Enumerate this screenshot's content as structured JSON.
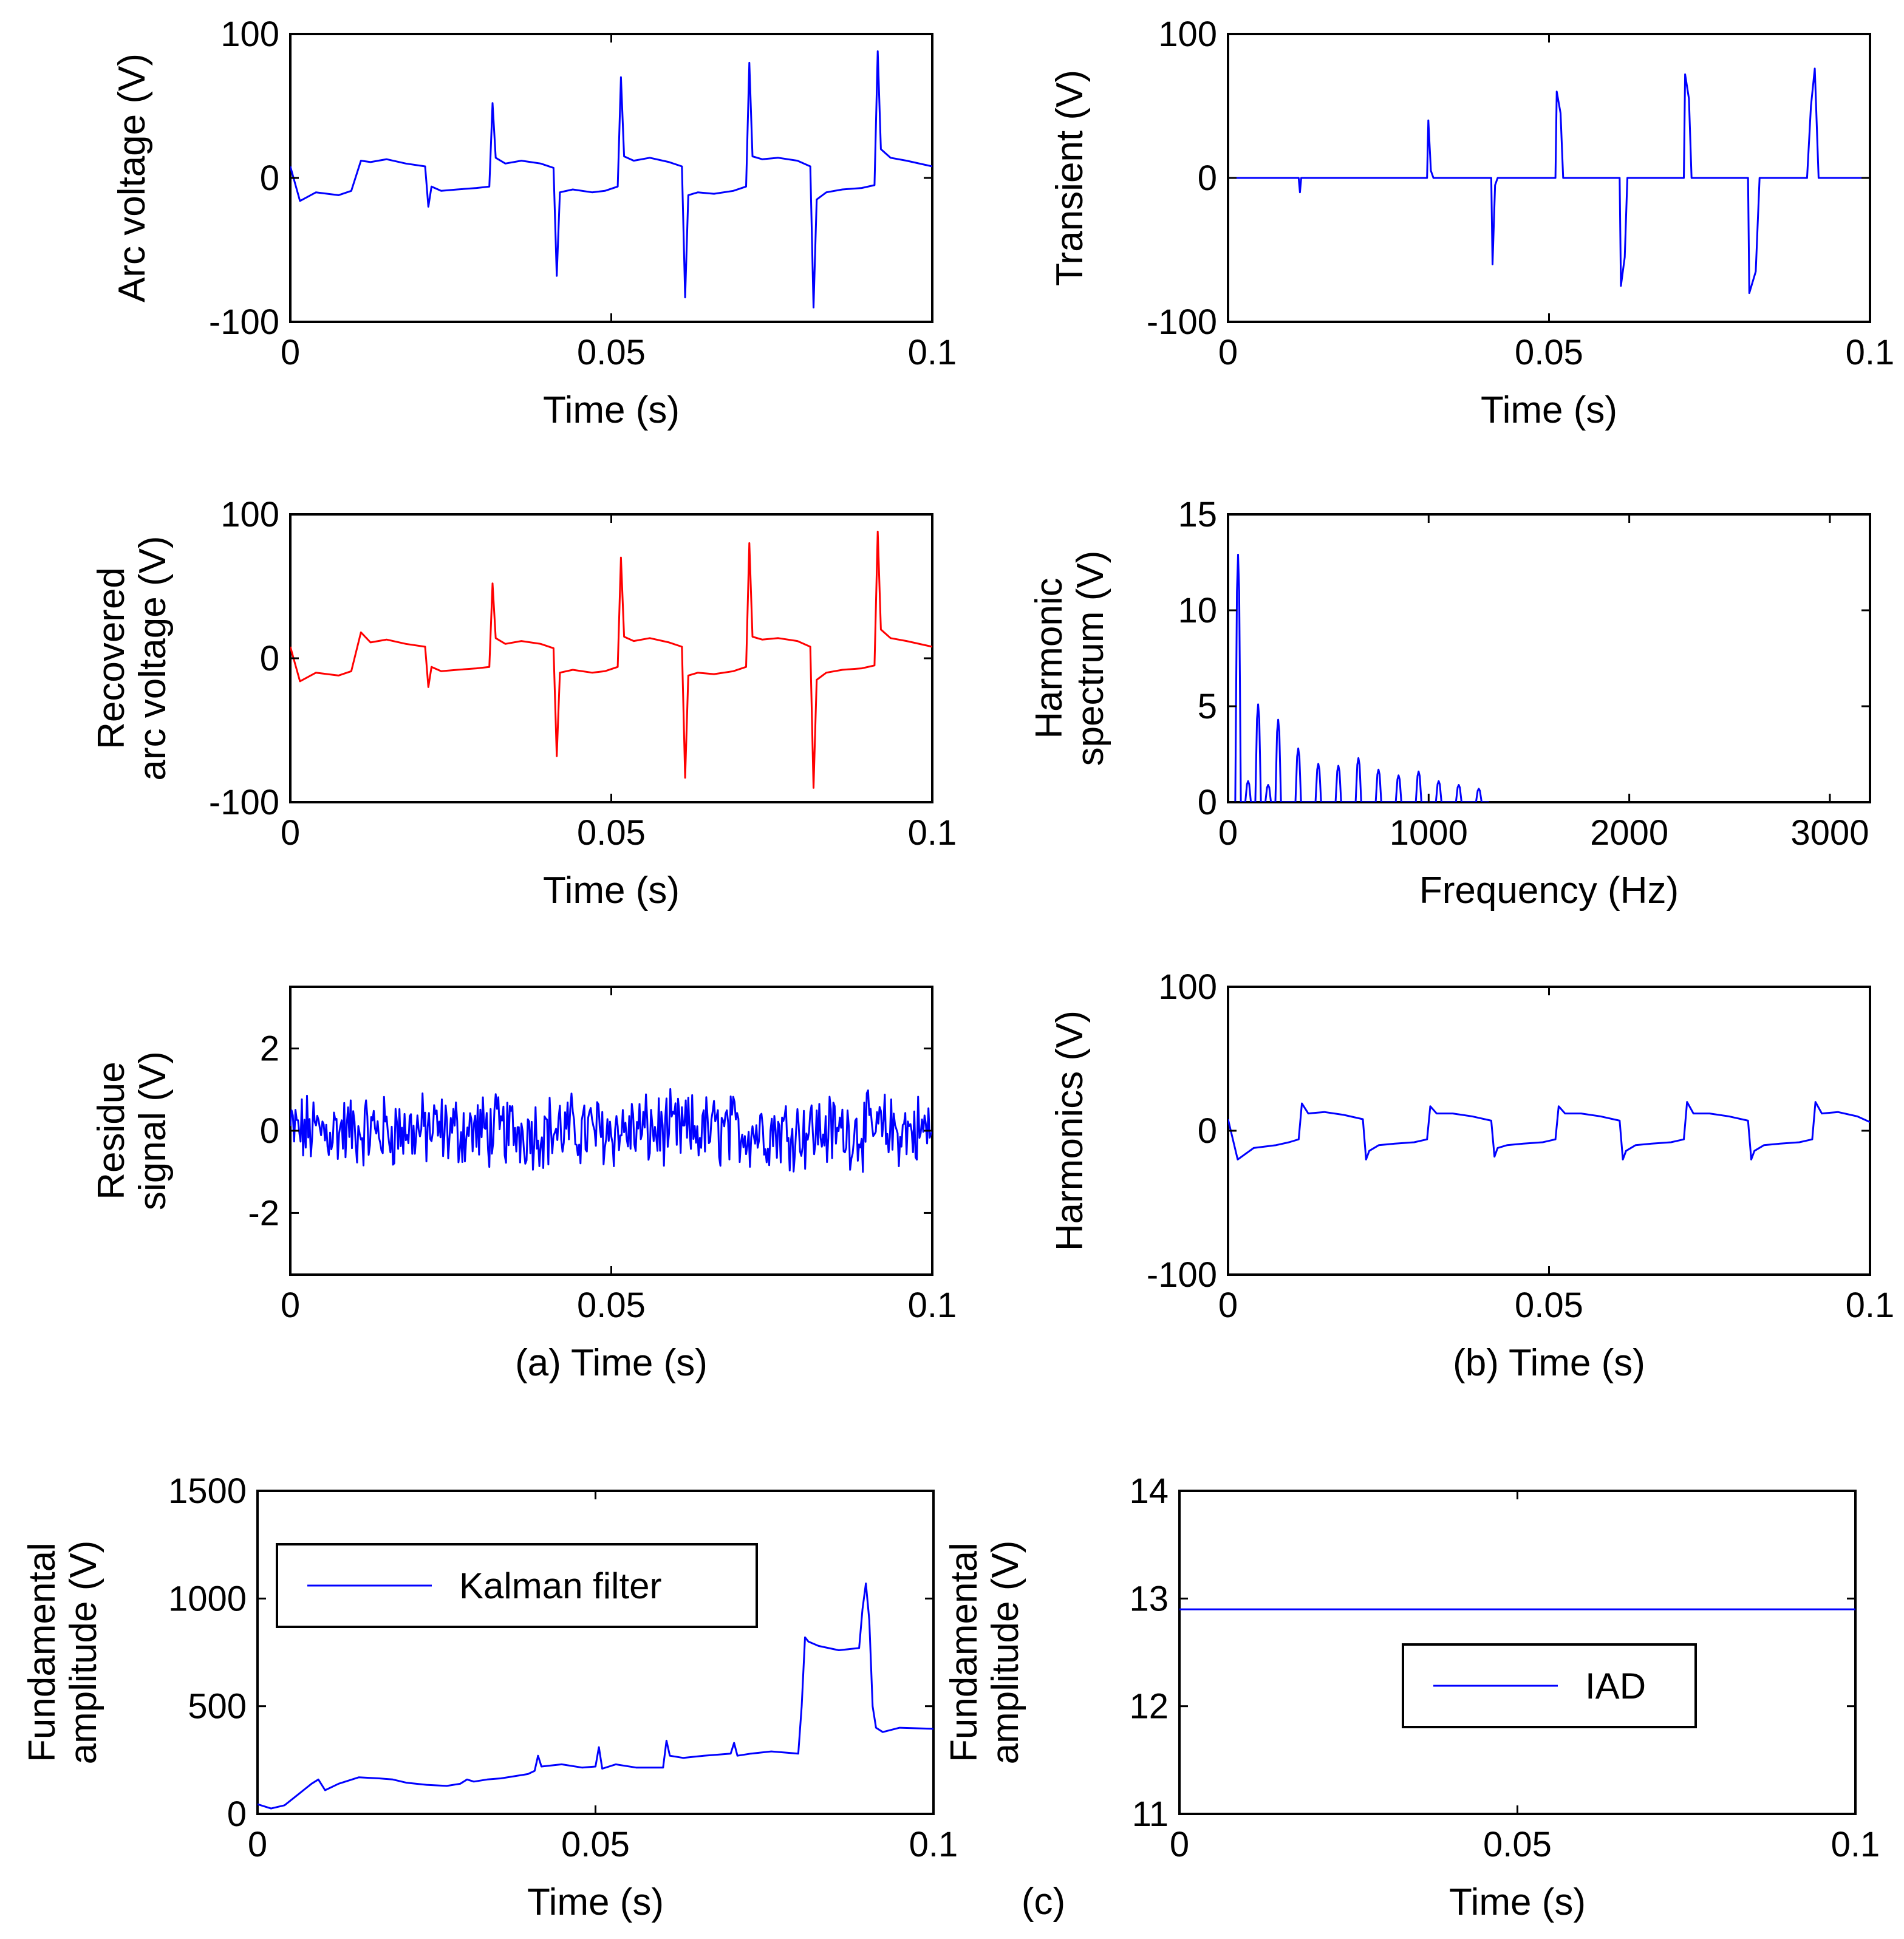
{
  "colors": {
    "blue": "#0000ff",
    "red": "#ff0000",
    "axis": "#000000",
    "background": "#ffffff"
  },
  "chart_data": [
    {
      "id": "arc-voltage",
      "type": "line",
      "xlabel": "Time (s)",
      "ylabel": [
        "Arc voltage (V)"
      ],
      "xlim": [
        0,
        0.1
      ],
      "ylim": [
        -100,
        100
      ],
      "xticks": [
        0,
        0.05,
        0.1
      ],
      "xtick_labels": [
        "0",
        "0.05",
        "0.1"
      ],
      "yticks": [
        -100,
        0,
        100
      ],
      "ytick_labels": [
        "-100",
        "0",
        "100"
      ],
      "series": [
        {
          "name": "Arc voltage",
          "color": "#0000ff",
          "x": [
            0,
            0.0015,
            0.004,
            0.0075,
            0.0095,
            0.011,
            0.0125,
            0.015,
            0.018,
            0.021,
            0.0215,
            0.022,
            0.0235,
            0.026,
            0.029,
            0.031,
            0.0315,
            0.032,
            0.0335,
            0.036,
            0.039,
            0.041,
            0.0415,
            0.042,
            0.044,
            0.047,
            0.049,
            0.051,
            0.0515,
            0.052,
            0.0535,
            0.056,
            0.059,
            0.061,
            0.0615,
            0.062,
            0.0635,
            0.066,
            0.069,
            0.071,
            0.0715,
            0.072,
            0.0735,
            0.076,
            0.079,
            0.081,
            0.0815,
            0.082,
            0.0835,
            0.086,
            0.089,
            0.091,
            0.0915,
            0.092,
            0.0935,
            0.096,
            0.1
          ],
          "y": [
            8,
            -16,
            -10,
            -12,
            -9,
            12,
            11,
            13,
            10,
            8,
            -20,
            -6,
            -9,
            -8,
            -7,
            -6,
            52,
            14,
            10,
            12,
            10,
            7,
            -68,
            -10,
            -8,
            -10,
            -9,
            -6,
            70,
            15,
            12,
            14,
            11,
            8,
            -83,
            -12,
            -10,
            -11,
            -9,
            -6,
            80,
            15,
            13,
            14,
            12,
            8,
            -90,
            -15,
            -10,
            -8,
            -7,
            -5,
            88,
            20,
            14,
            12,
            8
          ]
        }
      ]
    },
    {
      "id": "transient",
      "type": "line",
      "xlabel": "Time (s)",
      "ylabel": [
        "Transient (V)"
      ],
      "xlim": [
        0,
        0.1
      ],
      "ylim": [
        -100,
        100
      ],
      "xticks": [
        0,
        0.05,
        0.1
      ],
      "xtick_labels": [
        "0",
        "0.05",
        "0.1"
      ],
      "yticks": [
        -100,
        0,
        100
      ],
      "ytick_labels": [
        "-100",
        "0",
        "100"
      ],
      "series": [
        {
          "name": "Transient",
          "color": "#0000ff",
          "x": [
            0,
            0.011,
            0.0112,
            0.0114,
            0.031,
            0.0312,
            0.0316,
            0.032,
            0.041,
            0.0412,
            0.0416,
            0.042,
            0.051,
            0.0512,
            0.0518,
            0.0522,
            0.061,
            0.0612,
            0.0618,
            0.0622,
            0.071,
            0.0712,
            0.0718,
            0.0722,
            0.081,
            0.0812,
            0.0822,
            0.0828,
            0.0902,
            0.0908,
            0.0914,
            0.092,
            0.1
          ],
          "y": [
            0,
            0,
            -10,
            0,
            0,
            40,
            5,
            0,
            0,
            -60,
            -5,
            0,
            0,
            60,
            45,
            0,
            0,
            -75,
            -55,
            0,
            0,
            72,
            55,
            0,
            0,
            -80,
            -65,
            0,
            0,
            50,
            76,
            0,
            0
          ]
        }
      ]
    },
    {
      "id": "recovered-arc-voltage",
      "type": "line",
      "xlabel": "Time (s)",
      "ylabel": [
        "Recovered",
        "arc voltage (V)"
      ],
      "xlim": [
        0,
        0.1
      ],
      "ylim": [
        -100,
        100
      ],
      "xticks": [
        0,
        0.05,
        0.1
      ],
      "xtick_labels": [
        "0",
        "0.05",
        "0.1"
      ],
      "yticks": [
        -100,
        0,
        100
      ],
      "ytick_labels": [
        "-100",
        "0",
        "100"
      ],
      "series": [
        {
          "name": "Recovered arc voltage",
          "color": "#ff0000",
          "x": [
            0,
            0.0015,
            0.004,
            0.0075,
            0.0095,
            0.011,
            0.0125,
            0.015,
            0.018,
            0.021,
            0.0215,
            0.022,
            0.0235,
            0.026,
            0.029,
            0.031,
            0.0315,
            0.032,
            0.0335,
            0.036,
            0.039,
            0.041,
            0.0415,
            0.042,
            0.044,
            0.047,
            0.049,
            0.051,
            0.0515,
            0.052,
            0.0535,
            0.056,
            0.059,
            0.061,
            0.0615,
            0.062,
            0.0635,
            0.066,
            0.069,
            0.071,
            0.0715,
            0.072,
            0.0735,
            0.076,
            0.079,
            0.081,
            0.0815,
            0.082,
            0.0835,
            0.086,
            0.089,
            0.091,
            0.0915,
            0.092,
            0.0935,
            0.096,
            0.1
          ],
          "y": [
            8,
            -16,
            -10,
            -12,
            -9,
            18,
            11,
            13,
            10,
            8,
            -20,
            -6,
            -9,
            -8,
            -7,
            -6,
            52,
            14,
            10,
            12,
            10,
            7,
            -68,
            -10,
            -8,
            -10,
            -9,
            -6,
            70,
            15,
            12,
            14,
            11,
            8,
            -83,
            -12,
            -10,
            -11,
            -9,
            -6,
            80,
            15,
            13,
            14,
            12,
            8,
            -90,
            -15,
            -10,
            -8,
            -7,
            -5,
            88,
            20,
            14,
            12,
            8
          ]
        }
      ]
    },
    {
      "id": "harmonic-spectrum",
      "type": "line",
      "xlabel": "Frequency (Hz)",
      "ylabel": [
        "Harmonic",
        "spectrum (V)"
      ],
      "xlim": [
        0,
        3200
      ],
      "ylim": [
        0,
        15
      ],
      "xticks": [
        0,
        1000,
        2000,
        3000
      ],
      "xtick_labels": [
        "0",
        "1000",
        "2000",
        "3000"
      ],
      "yticks": [
        0,
        5,
        10,
        15
      ],
      "ytick_labels": [
        "0",
        "5",
        "10",
        "15"
      ],
      "series": [
        {
          "name": "Harmonic spectrum",
          "color": "#0000ff",
          "peaks_hz": [
            50,
            100,
            150,
            200,
            250,
            350,
            450,
            550,
            650,
            750,
            850,
            950,
            1050,
            1150,
            1250
          ],
          "peak_amplitudes": [
            12.9,
            1.1,
            5.1,
            0.9,
            4.3,
            2.8,
            2.0,
            1.9,
            2.3,
            1.7,
            1.4,
            1.6,
            1.1,
            0.9,
            0.7
          ]
        }
      ]
    },
    {
      "id": "residue-signal",
      "type": "line",
      "xlabel": "(a) Time (s)",
      "ylabel": [
        "Residue",
        "signal (V)"
      ],
      "xlim": [
        0,
        0.1
      ],
      "ylim": [
        -3.5,
        3.5
      ],
      "xticks": [
        0,
        0.05,
        0.1
      ],
      "xtick_labels": [
        "0",
        "0.05",
        "0.1"
      ],
      "yticks": [
        -2,
        0,
        2
      ],
      "ytick_labels": [
        "-2",
        "0",
        "2"
      ],
      "series": [
        {
          "name": "Residue signal",
          "color": "#0000ff",
          "description_values": {
            "approx_amplitude_range": [
              -1.1,
              1.1
            ],
            "points": 500
          }
        }
      ]
    },
    {
      "id": "harmonics",
      "type": "line",
      "xlabel": "(b) Time (s)",
      "ylabel": [
        "Harmonics (V)"
      ],
      "xlim": [
        0,
        0.1
      ],
      "ylim": [
        -100,
        100
      ],
      "xticks": [
        0,
        0.05,
        0.1
      ],
      "xtick_labels": [
        "0",
        "0.05",
        "0.1"
      ],
      "yticks": [
        -100,
        0,
        100
      ],
      "ytick_labels": [
        "-100",
        "0",
        "100"
      ],
      "series": [
        {
          "name": "Harmonics",
          "color": "#0000ff",
          "x": [
            0,
            0.0015,
            0.004,
            0.0075,
            0.0095,
            0.011,
            0.0115,
            0.0125,
            0.015,
            0.018,
            0.021,
            0.0215,
            0.022,
            0.0235,
            0.026,
            0.029,
            0.031,
            0.0315,
            0.0325,
            0.035,
            0.038,
            0.041,
            0.0415,
            0.042,
            0.0435,
            0.046,
            0.049,
            0.051,
            0.0515,
            0.0525,
            0.055,
            0.058,
            0.061,
            0.0615,
            0.062,
            0.0635,
            0.066,
            0.069,
            0.071,
            0.0715,
            0.0725,
            0.075,
            0.078,
            0.081,
            0.0815,
            0.082,
            0.0835,
            0.086,
            0.089,
            0.091,
            0.0915,
            0.0925,
            0.095,
            0.098,
            0.1
          ],
          "y": [
            8,
            -20,
            -12,
            -10,
            -8,
            -6,
            19,
            12,
            13,
            11,
            8,
            -20,
            -14,
            -10,
            -9,
            -8,
            -6,
            17,
            12,
            12,
            10,
            7,
            -18,
            -12,
            -10,
            -9,
            -8,
            -6,
            17,
            12,
            12,
            10,
            7,
            -20,
            -14,
            -10,
            -9,
            -8,
            -6,
            20,
            12,
            12,
            10,
            7,
            -20,
            -14,
            -10,
            -9,
            -8,
            -6,
            20,
            12,
            13,
            10,
            6
          ]
        }
      ]
    },
    {
      "id": "fundamental-kalman",
      "type": "line",
      "xlabel": "Time (s)",
      "ylabel": [
        "Fundamental",
        "amplitude (V)"
      ],
      "xlim": [
        0,
        0.1
      ],
      "ylim": [
        0,
        1500
      ],
      "xticks": [
        0,
        0.05,
        0.1
      ],
      "xtick_labels": [
        "0",
        "0.05",
        "0.1"
      ],
      "yticks": [
        0,
        500,
        1000,
        1500
      ],
      "ytick_labels": [
        "0",
        "500",
        "1000",
        "1500"
      ],
      "legend": {
        "entries": [
          "Kalman filter"
        ],
        "placement": "upper-left"
      },
      "series": [
        {
          "name": "Kalman filter",
          "color": "#0000ff",
          "x": [
            0,
            0.002,
            0.004,
            0.006,
            0.008,
            0.009,
            0.01,
            0.012,
            0.015,
            0.018,
            0.02,
            0.022,
            0.025,
            0.028,
            0.03,
            0.031,
            0.032,
            0.034,
            0.036,
            0.04,
            0.041,
            0.0415,
            0.042,
            0.045,
            0.048,
            0.05,
            0.0505,
            0.051,
            0.053,
            0.056,
            0.06,
            0.0605,
            0.061,
            0.063,
            0.066,
            0.07,
            0.0705,
            0.071,
            0.073,
            0.076,
            0.08,
            0.0805,
            0.081,
            0.0815,
            0.083,
            0.086,
            0.089,
            0.0895,
            0.09,
            0.0905,
            0.091,
            0.0915,
            0.0925,
            0.095,
            0.1
          ],
          "y": [
            45,
            25,
            40,
            90,
            140,
            160,
            110,
            140,
            170,
            165,
            160,
            145,
            135,
            130,
            140,
            160,
            150,
            160,
            165,
            185,
            200,
            270,
            220,
            230,
            215,
            220,
            310,
            210,
            230,
            215,
            215,
            340,
            270,
            260,
            270,
            280,
            330,
            270,
            280,
            290,
            280,
            500,
            820,
            800,
            780,
            760,
            770,
            950,
            1070,
            900,
            500,
            400,
            380,
            400,
            395
          ]
        }
      ]
    },
    {
      "id": "fundamental-iad",
      "type": "line",
      "xlabel": "Time (s)",
      "ylabel": [
        "Fundamental",
        "amplitude (V)"
      ],
      "xlim": [
        0,
        0.1
      ],
      "ylim": [
        11,
        14
      ],
      "xticks": [
        0,
        0.05,
        0.1
      ],
      "xtick_labels": [
        "0",
        "0.05",
        "0.1"
      ],
      "yticks": [
        11,
        12,
        13,
        14
      ],
      "ytick_labels": [
        "11",
        "12",
        "13",
        "14"
      ],
      "legend": {
        "entries": [
          "IAD"
        ],
        "placement": "center"
      },
      "series": [
        {
          "name": "IAD",
          "color": "#0000ff",
          "x": [
            0,
            0.1
          ],
          "y": [
            12.9,
            12.9
          ]
        }
      ]
    }
  ],
  "figure": {
    "panel_c_label": "(c)"
  }
}
